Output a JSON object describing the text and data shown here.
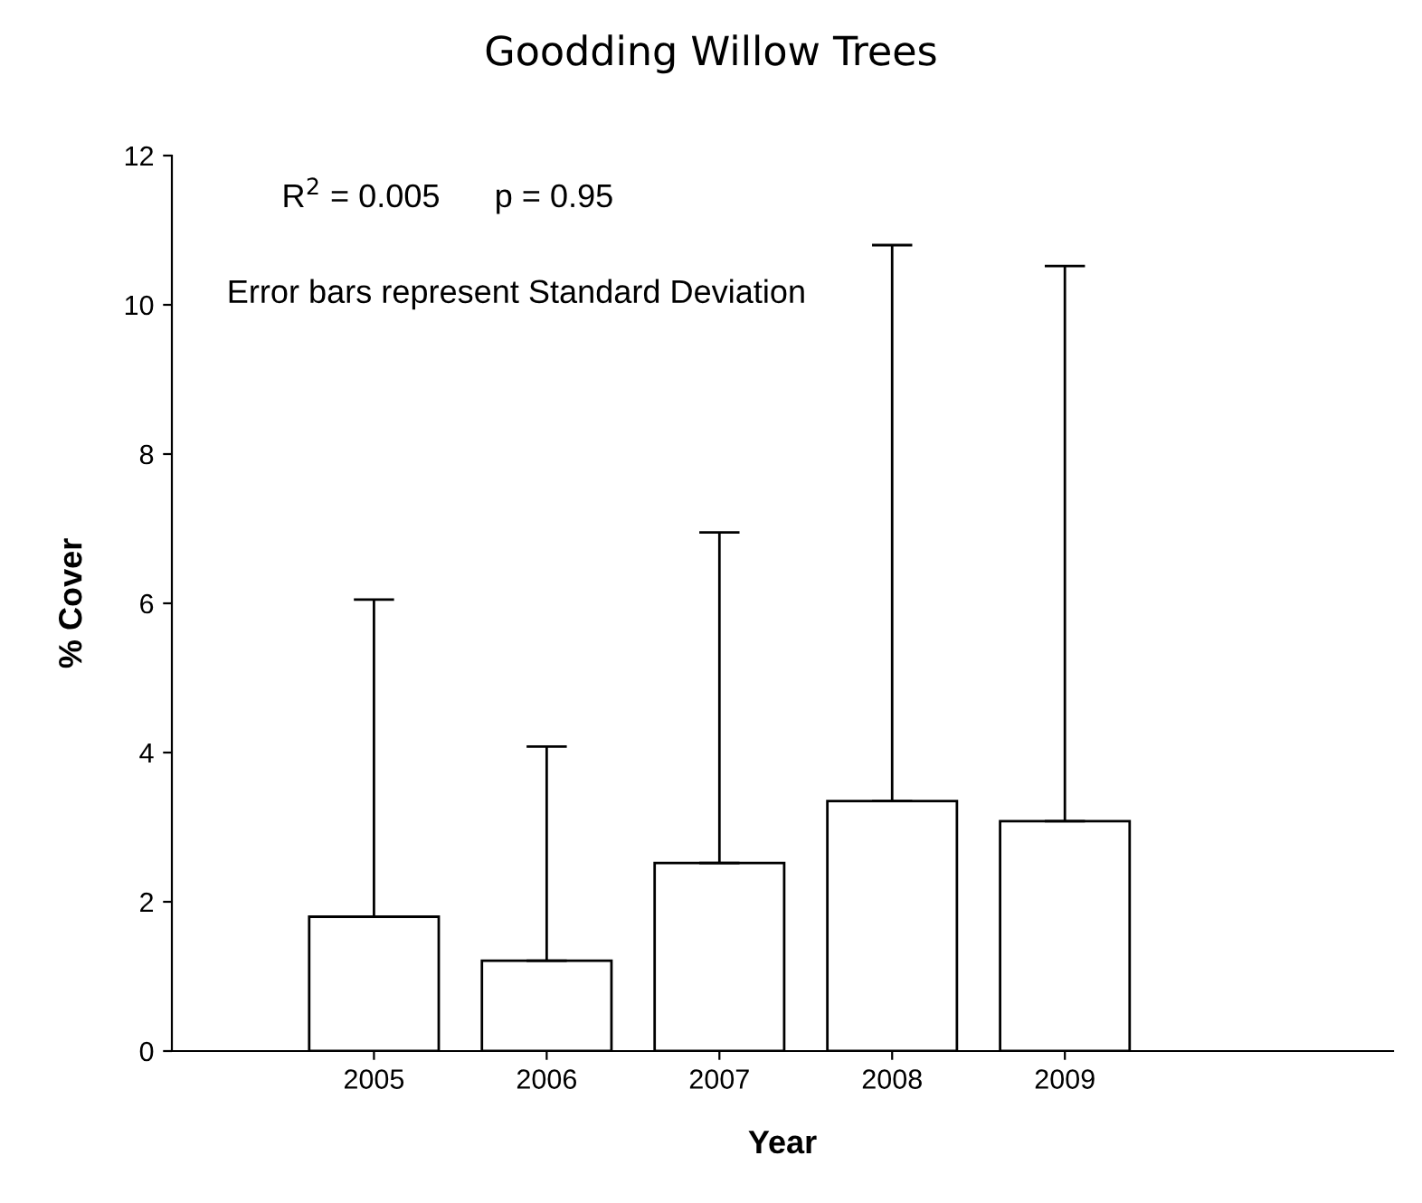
{
  "chart_data": {
    "type": "bar",
    "title": "Goodding Willow Trees",
    "xlabel": "Year",
    "ylabel": "% Cover",
    "x": [
      2005,
      2006,
      2007,
      2008,
      2009
    ],
    "values": [
      1.8,
      1.21,
      2.52,
      3.35,
      3.08
    ],
    "errors": [
      [
        1.8,
        6.05
      ],
      [
        1.21,
        4.08
      ],
      [
        2.52,
        6.95
      ],
      [
        3.35,
        10.8
      ],
      [
        3.08,
        10.52
      ]
    ],
    "color": "#ffffff",
    "xlim": [
      2003.83,
      2010.9
    ],
    "xticks": [
      2005,
      2006,
      2007,
      2008,
      2009
    ],
    "ylim": [
      0,
      12
    ],
    "yticks": [
      0,
      2,
      4,
      6,
      8,
      10,
      12
    ],
    "annotations": [
      "R$^{2}$ = 0.005      p = 0.95",
      "Error bars represent Standard Deviation"
    ],
    "grid": false
  }
}
